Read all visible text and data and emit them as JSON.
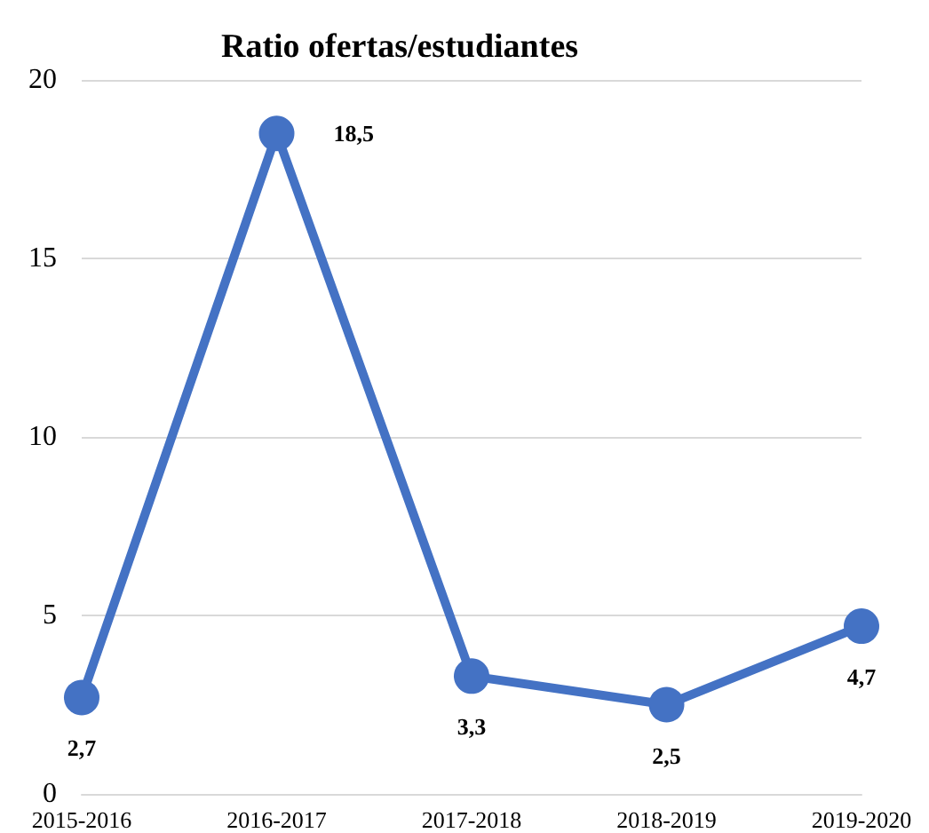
{
  "chart_data": {
    "type": "line",
    "title": "Ratio ofertas/estudiantes",
    "categories": [
      "2015-2016",
      "2016-2017",
      "2017-2018",
      "2018-2019",
      "2019-2020"
    ],
    "series": [
      {
        "color": "#4472c4",
        "values": [
          2.7,
          18.5,
          3.3,
          2.5,
          4.7
        ],
        "value_labels": [
          "2,7",
          "18,5",
          "3,3",
          "2,5",
          "4,7"
        ]
      }
    ],
    "ylim": [
      0,
      20
    ],
    "yticks": [
      0,
      5,
      10,
      15,
      20
    ],
    "grid": "y",
    "marker": "circle",
    "line_style": "solid"
  }
}
